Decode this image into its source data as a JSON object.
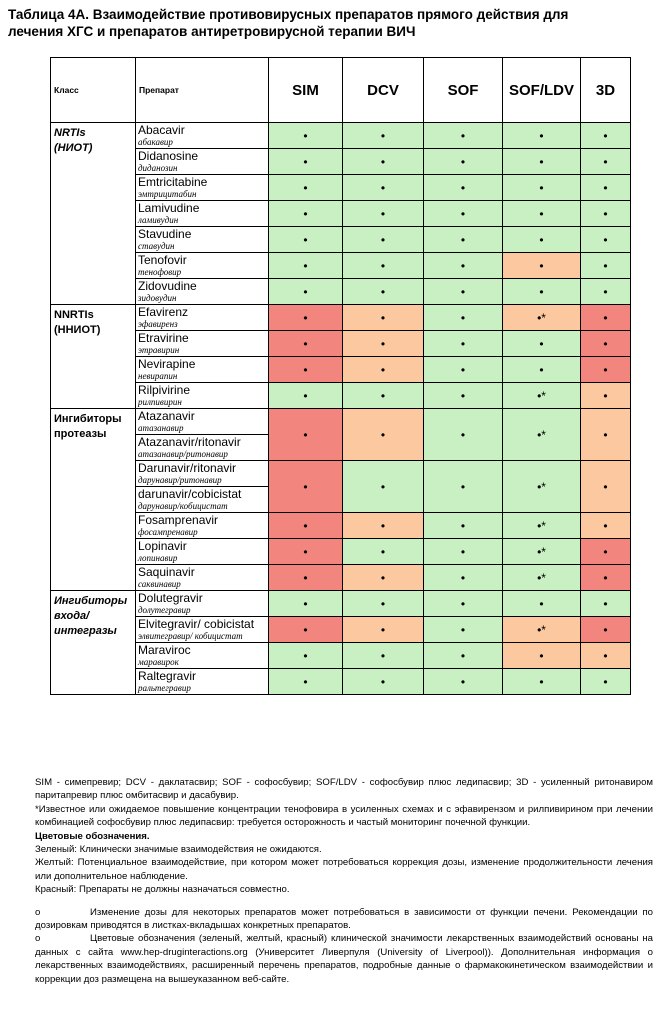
{
  "title": [
    "Таблица 4А.  Взаимодействие противовирусных препаратов прямого действия для",
    "лечения ХГС и препаратов антиретровирусной терапии ВИЧ"
  ],
  "table": {
    "header": [
      "Класс",
      "Препарат",
      "SIM",
      "DCV",
      "SOF",
      "SOF/LDV",
      "3D"
    ],
    "groups": [
      {
        "class": [
          "NRTIs",
          "(НИОТ)"
        ],
        "rows": [
          {
            "drugs": [
              {
                "name": "Abacavir",
                "ru": "абакавир"
              }
            ],
            "marks": [
              "•",
              "•",
              "•",
              "•",
              "•"
            ],
            "colors": [
              "#c9f0c2",
              "#c9f0c2",
              "#c9f0c2",
              "#c9f0c2",
              "#c9f0c2"
            ]
          },
          {
            "drugs": [
              {
                "name": "Didanosine",
                "ru": "диданозин"
              }
            ],
            "marks": [
              "•",
              "•",
              "•",
              "•",
              "•"
            ],
            "colors": [
              "#c9f0c2",
              "#c9f0c2",
              "#c9f0c2",
              "#c9f0c2",
              "#c9f0c2"
            ]
          },
          {
            "drugs": [
              {
                "name": "Emtricitabine",
                "ru": "эмтрицитабин"
              }
            ],
            "marks": [
              "•",
              "•",
              "•",
              "•",
              "•"
            ],
            "colors": [
              "#c9f0c2",
              "#c9f0c2",
              "#c9f0c2",
              "#c9f0c2",
              "#c9f0c2"
            ]
          },
          {
            "drugs": [
              {
                "name": "Lamivudine",
                "ru": "ламивудин"
              }
            ],
            "marks": [
              "•",
              "•",
              "•",
              "•",
              "•"
            ],
            "colors": [
              "#c9f0c2",
              "#c9f0c2",
              "#c9f0c2",
              "#c9f0c2",
              "#c9f0c2"
            ]
          },
          {
            "drugs": [
              {
                "name": "Stavudine",
                "ru": "ставудин"
              }
            ],
            "marks": [
              "•",
              "•",
              "•",
              "•",
              "•"
            ],
            "colors": [
              "#c9f0c2",
              "#c9f0c2",
              "#c9f0c2",
              "#c9f0c2",
              "#c9f0c2"
            ]
          },
          {
            "drugs": [
              {
                "name": "Tenofovir",
                "ru": "тенофовир"
              }
            ],
            "marks": [
              "•",
              "•",
              "•",
              "•",
              "•"
            ],
            "colors": [
              "#c9f0c2",
              "#c9f0c2",
              "#c9f0c2",
              "#fcc8a0",
              "#c9f0c2"
            ]
          },
          {
            "drugs": [
              {
                "name": "Zidovudine",
                "ru": "зидовудин"
              }
            ],
            "marks": [
              "•",
              "•",
              "•",
              "•",
              "•"
            ],
            "colors": [
              "#c9f0c2",
              "#c9f0c2",
              "#c9f0c2",
              "#c9f0c2",
              "#c9f0c2"
            ]
          }
        ]
      },
      {
        "class": [
          "NNRTIs",
          "(ННИОТ)"
        ],
        "rows": [
          {
            "drugs": [
              {
                "name": "Efavirenz",
                "ru": "эфавиренз"
              }
            ],
            "marks": [
              "•",
              "•",
              "•",
              "•*",
              "•"
            ],
            "colors": [
              "#f2857d",
              "#fcc8a0",
              "#c9f0c2",
              "#fcc8a0",
              "#f2857d"
            ]
          },
          {
            "drugs": [
              {
                "name": "Etravirine",
                "ru": "этравирин"
              }
            ],
            "marks": [
              "•",
              "•",
              "•",
              "•",
              "•"
            ],
            "colors": [
              "#f2857d",
              "#fcc8a0",
              "#c9f0c2",
              "#c9f0c2",
              "#f2857d"
            ]
          },
          {
            "drugs": [
              {
                "name": "Nevirapine",
                "ru": "невирапин"
              }
            ],
            "marks": [
              "•",
              "•",
              "•",
              "•",
              "•"
            ],
            "colors": [
              "#f2857d",
              "#fcc8a0",
              "#c9f0c2",
              "#c9f0c2",
              "#f2857d"
            ]
          },
          {
            "drugs": [
              {
                "name": "Rilpivirine",
                "ru": "рилпивирин"
              }
            ],
            "marks": [
              "•",
              "•",
              "•",
              "•*",
              "•"
            ],
            "colors": [
              "#c9f0c2",
              "#c9f0c2",
              "#c9f0c2",
              "#c9f0c2",
              "#fcc8a0"
            ]
          }
        ]
      },
      {
        "class": [
          "Ингибиторы",
          "протеазы"
        ],
        "rows": [
          {
            "drugs": [
              {
                "name": "Atazanavir",
                "ru": "атазанавир"
              },
              {
                "name": "Atazanavir/ritonavir",
                "ru": "атазанавир/ритонавир"
              }
            ],
            "marks": [
              "•",
              "•",
              "•",
              "•*",
              "•"
            ],
            "colors": [
              "#f2857d",
              "#fcc8a0",
              "#c9f0c2",
              "#c9f0c2",
              "#fcc8a0"
            ]
          },
          {
            "drugs": [
              {
                "name": "Darunavir/ritonavir",
                "ru": "дарунавир/ритонавир"
              },
              {
                "name": "darunavir/cobicistat",
                "ru": "дарунавир/кобицистат"
              }
            ],
            "marks": [
              "•",
              "•",
              "•",
              "•*",
              "•"
            ],
            "colors": [
              "#f2857d",
              "#c9f0c2",
              "#c9f0c2",
              "#c9f0c2",
              "#fcc8a0"
            ]
          },
          {
            "drugs": [
              {
                "name": "Fosamprenavir",
                "ru": "фосампренавир"
              }
            ],
            "marks": [
              "•",
              "•",
              "•",
              "•*",
              "•"
            ],
            "colors": [
              "#f2857d",
              "#fcc8a0",
              "#c9f0c2",
              "#c9f0c2",
              "#fcc8a0"
            ]
          },
          {
            "drugs": [
              {
                "name": "Lopinavir",
                "ru": "лопинавир"
              }
            ],
            "marks": [
              "•",
              "•",
              "•",
              "•*",
              "•"
            ],
            "colors": [
              "#f2857d",
              "#c9f0c2",
              "#c9f0c2",
              "#c9f0c2",
              "#f2857d"
            ]
          },
          {
            "drugs": [
              {
                "name": "Saquinavir",
                "ru": "саквинавир"
              }
            ],
            "marks": [
              "•",
              "•",
              "•",
              "•*",
              "•"
            ],
            "colors": [
              "#f2857d",
              "#fcc8a0",
              "#c9f0c2",
              "#c9f0c2",
              "#f2857d"
            ]
          }
        ]
      },
      {
        "class": [
          "Ингибиторы",
          "входа/",
          "интегразы"
        ],
        "rows": [
          {
            "drugs": [
              {
                "name": "Dolutegravir",
                "ru": "долутегравир"
              }
            ],
            "marks": [
              "•",
              "•",
              "•",
              "•",
              "•"
            ],
            "colors": [
              "#c9f0c2",
              "#c9f0c2",
              "#c9f0c2",
              "#c9f0c2",
              "#c9f0c2"
            ]
          },
          {
            "drugs": [
              {
                "name": "Elvitegravir/ cobicistat",
                "ru": "элвитегравир/ кобицистат"
              }
            ],
            "marks": [
              "•",
              "•",
              "•",
              "•*",
              "•"
            ],
            "colors": [
              "#f2857d",
              "#fcc8a0",
              "#c9f0c2",
              "#fcc8a0",
              "#f2857d"
            ]
          },
          {
            "drugs": [
              {
                "name": "Maraviroc",
                "ru": "маравирок"
              }
            ],
            "marks": [
              "•",
              "•",
              "•",
              "•",
              "•"
            ],
            "colors": [
              "#c9f0c2",
              "#c9f0c2",
              "#c9f0c2",
              "#fcc8a0",
              "#fcc8a0"
            ]
          },
          {
            "drugs": [
              {
                "name": "Raltegravir",
                "ru": "ральтегравир"
              }
            ],
            "marks": [
              "•",
              "•",
              "•",
              "•",
              "•"
            ],
            "colors": [
              "#c9f0c2",
              "#c9f0c2",
              "#c9f0c2",
              "#c9f0c2",
              "#c9f0c2"
            ]
          }
        ]
      }
    ]
  },
  "notes": [
    {
      "text": "SIM - симепревир; DCV - даклатасвир; SOF - софосбувир; SOF/LDV - софосбувир плюс ледипасвир; 3D - усиленный ритонавиром паритапревир плюс омбитасвир и дасабувир."
    },
    {
      "text": "*Известное или ожидаемое повышение концентрации тенофовира в усиленных схемах и с эфавирензом и рилпивирином при лечении комбинацией софосбувир плюс ледипасвир: требуется осторожность и частый мониторинг почечной функции."
    },
    {
      "text": "Цветовые обозначения.",
      "bold": true
    },
    {
      "text": "Зеленый: Клинически значимые взаимодействия не ожидаются."
    },
    {
      "text": "Желтый: Потенциальное взаимодействие, при котором может потребоваться коррекция дозы, изменение продолжительности лечения или дополнительное наблюдение."
    },
    {
      "text": "Красный: Препараты не должны назначаться совместно."
    },
    {
      "bullet": "o",
      "text": "Изменение дозы для некоторых препаратов может потребоваться в зависимости от функции печени. Рекомендации по дозировкам приводятся в листках-вкладышах конкретных препаратов.",
      "gap": true
    },
    {
      "bullet": "o",
      "text": "Цветовые обозначения (зеленый, желтый, красный) клинической значимости лекарственных взаимодействий основаны на данных с сайта  www.hep-druginteractions.org (Университет Ливерпуля (University of Liverpool)). Дополнительная информация о лекарственных взаимодействиях, расширенный перечень препаратов, подробные данные о фармакокинетическом взаимодействии и коррекции доз размещена на вышеуказанном веб-сайте."
    }
  ]
}
